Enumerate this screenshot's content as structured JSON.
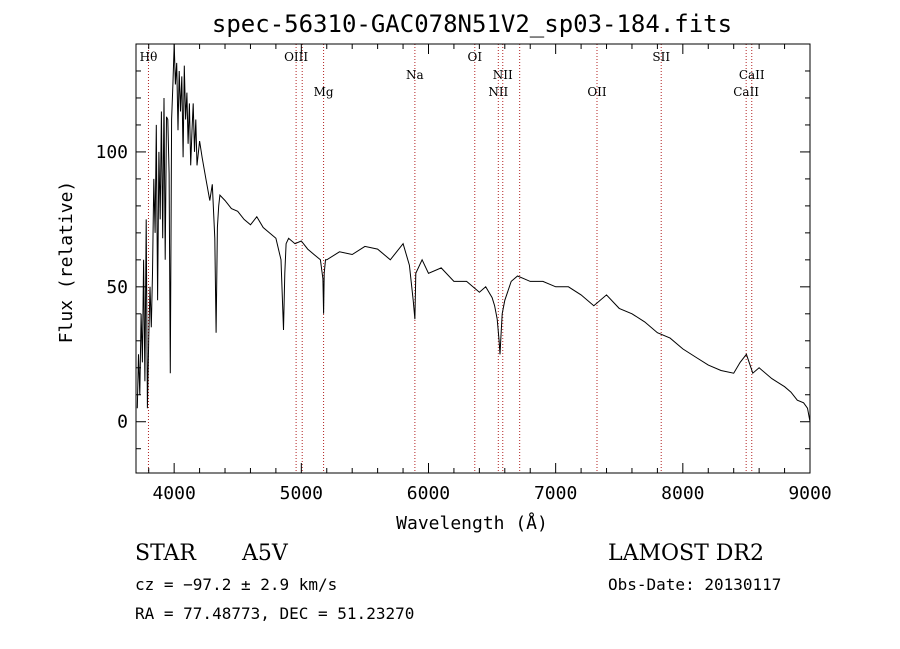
{
  "chart_data": {
    "type": "line",
    "title": "spec-56310-GAC078N51V2_sp03-184.fits",
    "xlabel": "Wavelength (Å)",
    "ylabel": "Flux (relative)",
    "xlim": [
      3700,
      9000
    ],
    "ylim": [
      -19,
      140
    ],
    "xticks": [
      4000,
      5000,
      6000,
      7000,
      8000,
      9000
    ],
    "yticks": [
      0,
      50,
      100
    ],
    "grid": false,
    "line_color": "#000000",
    "marker_color": "#b22222",
    "spectral_lines": [
      {
        "label": "Hθ",
        "wavelength": 3798,
        "row": "upper"
      },
      {
        "label": "OIII",
        "wavelength": 4959,
        "row": "upper"
      },
      {
        "label": "OIII",
        "wavelength": 5007,
        "row": "none"
      },
      {
        "label": "Mg",
        "wavelength": 5175,
        "row": "lower"
      },
      {
        "label": "Na",
        "wavelength": 5893,
        "row": "middle"
      },
      {
        "label": "OI",
        "wavelength": 6364,
        "row": "upper"
      },
      {
        "label": "NII",
        "wavelength": 6549,
        "row": "lower"
      },
      {
        "label": "NII",
        "wavelength": 6584,
        "row": "middle"
      },
      {
        "label": "OII",
        "wavelength": 7325,
        "row": "lower"
      },
      {
        "label": "SII",
        "wavelength": 6717,
        "row": "none"
      },
      {
        "label": "SII",
        "wavelength": 7830,
        "row": "upper"
      },
      {
        "label": "CaII",
        "wavelength": 8498,
        "row": "lower"
      },
      {
        "label": "CaII",
        "wavelength": 8542,
        "row": "middle"
      }
    ],
    "series": [
      {
        "x": [
          3710,
          3720,
          3730,
          3740,
          3750,
          3760,
          3770,
          3780,
          3790,
          3800,
          3810,
          3820,
          3830,
          3840,
          3850,
          3860,
          3870,
          3880,
          3890,
          3900,
          3910,
          3920,
          3930,
          3940,
          3950,
          3960,
          3970,
          3980,
          3990,
          4000,
          4010,
          4020,
          4030,
          4040,
          4050,
          4060,
          4070,
          4080,
          4090,
          4100,
          4110,
          4120,
          4130,
          4140,
          4150,
          4160,
          4170,
          4180,
          4200,
          4220,
          4250,
          4280,
          4300,
          4320,
          4330,
          4340,
          4350,
          4360,
          4400,
          4450,
          4500,
          4550,
          4600,
          4650,
          4700,
          4750,
          4800,
          4840,
          4860,
          4870,
          4880,
          4900,
          4950,
          5000,
          5050,
          5100,
          5150,
          5170,
          5175,
          5180,
          5190,
          5200,
          5300,
          5400,
          5500,
          5600,
          5700,
          5800,
          5850,
          5880,
          5893,
          5900,
          5950,
          6000,
          6100,
          6200,
          6300,
          6400,
          6450,
          6500,
          6520,
          6540,
          6555,
          6562,
          6570,
          6580,
          6600,
          6650,
          6700,
          6750,
          6800,
          6900,
          7000,
          7100,
          7200,
          7300,
          7400,
          7500,
          7600,
          7700,
          7800,
          7900,
          8000,
          8100,
          8200,
          8300,
          8400,
          8450,
          8500,
          8550,
          8600,
          8700,
          8800,
          8850,
          8900,
          8950,
          8980,
          9000
        ],
        "y": [
          5,
          25,
          10,
          40,
          22,
          60,
          15,
          75,
          5,
          30,
          50,
          35,
          55,
          90,
          70,
          110,
          45,
          100,
          75,
          115,
          68,
          120,
          60,
          113,
          112,
          92,
          18,
          112,
          125,
          140,
          125,
          133,
          108,
          130,
          115,
          128,
          98,
          132,
          112,
          122,
          103,
          118,
          95,
          108,
          118,
          100,
          112,
          95,
          104,
          98,
          90,
          82,
          88,
          68,
          33,
          72,
          80,
          84,
          82,
          79,
          78,
          75,
          73,
          76,
          72,
          70,
          68,
          60,
          34,
          55,
          66,
          68,
          66,
          67,
          64,
          62,
          60,
          53,
          40,
          55,
          60,
          60,
          63,
          62,
          65,
          64,
          60,
          66,
          58,
          45,
          38,
          55,
          60,
          55,
          57,
          52,
          52,
          48,
          50,
          46,
          43,
          38,
          30,
          25,
          32,
          40,
          45,
          52,
          54,
          53,
          52,
          52,
          50,
          50,
          47,
          43,
          47,
          42,
          40,
          37,
          33,
          31,
          27,
          24,
          21,
          19,
          18,
          22,
          25,
          18,
          20,
          16,
          13,
          11,
          8,
          7,
          5,
          0
        ]
      }
    ]
  },
  "footer": {
    "object_class": "STAR",
    "subclass": "A5V",
    "cz": "cz = −97.2 ± 2.9 km/s",
    "coords": "RA =  77.48773, DEC =  51.23270",
    "survey": "LAMOST DR2",
    "obs_date": "Obs-Date: 20130117"
  }
}
